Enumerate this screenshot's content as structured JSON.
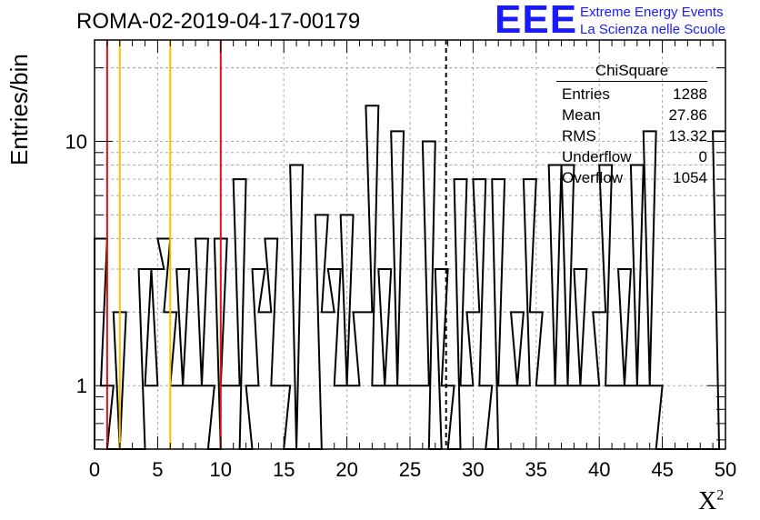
{
  "title": "ROMA-02-2019-04-17-00179",
  "logo": {
    "mark": "EEE",
    "line1": "Extreme Energy Events",
    "line2": "La Scienza nelle Scuole"
  },
  "stats": {
    "name": "ChiSquare",
    "rows": [
      {
        "label": "Entries",
        "value": "1288"
      },
      {
        "label": "Mean",
        "value": "27.86"
      },
      {
        "label": "RMS",
        "value": "13.32"
      },
      {
        "label": "Underflow",
        "value": "0"
      },
      {
        "label": "Overflow",
        "value": "1054"
      }
    ]
  },
  "colors": {
    "red": "#dd1111",
    "yellow": "#f5c400",
    "logo": "#1a1aff"
  },
  "chart_data": {
    "type": "histogram",
    "xlabel": "X",
    "xlabel_sup": "2",
    "ylabel": "Entries/bin",
    "xlim": [
      0,
      50
    ],
    "ylim": [
      0.55,
      26
    ],
    "yscale": "log",
    "grid": true,
    "bin_width": 1,
    "x_ticks": [
      "0",
      "5",
      "10",
      "15",
      "20",
      "25",
      "30",
      "35",
      "40",
      "45",
      "50"
    ],
    "y_ticks": [
      "1",
      "10"
    ],
    "bins": [
      {
        "x": 0.5,
        "v": 4
      },
      {
        "x": 1.0,
        "v": 1
      },
      {
        "x": 1.5,
        "v": 0
      },
      {
        "x": 2.0,
        "v": 2
      },
      {
        "x": 2.5,
        "v": 0
      },
      {
        "x": 3.0,
        "v": 0
      },
      {
        "x": 3.5,
        "v": 0
      },
      {
        "x": 4.0,
        "v": 3
      },
      {
        "x": 4.5,
        "v": 1
      },
      {
        "x": 5.0,
        "v": 3
      },
      {
        "x": 5.5,
        "v": 4
      },
      {
        "x": 6.0,
        "v": 2
      },
      {
        "x": 6.5,
        "v": 1
      },
      {
        "x": 7.0,
        "v": 3
      },
      {
        "x": 7.5,
        "v": 1
      },
      {
        "x": 8.0,
        "v": 1
      },
      {
        "x": 8.5,
        "v": 4
      },
      {
        "x": 9.0,
        "v": 1
      },
      {
        "x": 9.5,
        "v": 0
      },
      {
        "x": 10.0,
        "v": 4
      },
      {
        "x": 10.5,
        "v": 1
      },
      {
        "x": 11.0,
        "v": 1
      },
      {
        "x": 11.5,
        "v": 7
      },
      {
        "x": 12.0,
        "v": 0
      },
      {
        "x": 12.5,
        "v": 1
      },
      {
        "x": 13.0,
        "v": 3
      },
      {
        "x": 13.5,
        "v": 2
      },
      {
        "x": 14.0,
        "v": 4
      },
      {
        "x": 14.5,
        "v": 1
      },
      {
        "x": 15.0,
        "v": 1
      },
      {
        "x": 15.5,
        "v": 0
      },
      {
        "x": 16.0,
        "v": 8
      },
      {
        "x": 16.5,
        "v": 0
      },
      {
        "x": 17.0,
        "v": 0
      },
      {
        "x": 17.5,
        "v": 0
      },
      {
        "x": 18.0,
        "v": 5
      },
      {
        "x": 18.5,
        "v": 2
      },
      {
        "x": 19.0,
        "v": 3
      },
      {
        "x": 19.5,
        "v": 1
      },
      {
        "x": 20.0,
        "v": 5
      },
      {
        "x": 20.5,
        "v": 1
      },
      {
        "x": 21.0,
        "v": 2
      },
      {
        "x": 21.5,
        "v": 2
      },
      {
        "x": 22.0,
        "v": 14
      },
      {
        "x": 22.5,
        "v": 1
      },
      {
        "x": 23.0,
        "v": 3
      },
      {
        "x": 23.5,
        "v": 1
      },
      {
        "x": 24.0,
        "v": 11
      },
      {
        "x": 24.5,
        "v": 1
      },
      {
        "x": 25.0,
        "v": 1
      },
      {
        "x": 25.5,
        "v": 1
      },
      {
        "x": 26.0,
        "v": 1
      },
      {
        "x": 26.5,
        "v": 10
      },
      {
        "x": 27.0,
        "v": 0
      },
      {
        "x": 27.5,
        "v": 3
      },
      {
        "x": 28.0,
        "v": 1
      },
      {
        "x": 28.5,
        "v": 0
      },
      {
        "x": 29.0,
        "v": 7
      },
      {
        "x": 29.5,
        "v": 1
      },
      {
        "x": 30.0,
        "v": 2
      },
      {
        "x": 30.5,
        "v": 7
      },
      {
        "x": 31.0,
        "v": 1
      },
      {
        "x": 31.5,
        "v": 0
      },
      {
        "x": 32.0,
        "v": 7
      },
      {
        "x": 32.5,
        "v": 1
      },
      {
        "x": 33.0,
        "v": 1
      },
      {
        "x": 33.5,
        "v": 2
      },
      {
        "x": 34.0,
        "v": 1
      },
      {
        "x": 34.5,
        "v": 7
      },
      {
        "x": 35.0,
        "v": 2
      },
      {
        "x": 35.5,
        "v": 1
      },
      {
        "x": 36.0,
        "v": 1
      },
      {
        "x": 36.5,
        "v": 8
      },
      {
        "x": 37.0,
        "v": 1
      },
      {
        "x": 37.5,
        "v": 8
      },
      {
        "x": 38.0,
        "v": 1
      },
      {
        "x": 38.5,
        "v": 3
      },
      {
        "x": 39.0,
        "v": 1
      },
      {
        "x": 39.5,
        "v": 1
      },
      {
        "x": 40.0,
        "v": 2
      },
      {
        "x": 40.5,
        "v": 8
      },
      {
        "x": 41.0,
        "v": 1
      },
      {
        "x": 41.5,
        "v": 1
      },
      {
        "x": 42.0,
        "v": 3
      },
      {
        "x": 42.5,
        "v": 1
      },
      {
        "x": 43.0,
        "v": 8
      },
      {
        "x": 43.5,
        "v": 1
      },
      {
        "x": 44.0,
        "v": 11
      },
      {
        "x": 44.5,
        "v": 1
      },
      {
        "x": 45.0,
        "v": 0
      },
      {
        "x": 45.5,
        "v": 0
      },
      {
        "x": 46.0,
        "v": 0
      },
      {
        "x": 46.5,
        "v": 0
      },
      {
        "x": 47.0,
        "v": 0
      },
      {
        "x": 47.5,
        "v": 0
      },
      {
        "x": 48.0,
        "v": 0
      },
      {
        "x": 48.5,
        "v": 0
      },
      {
        "x": 49.0,
        "v": 0
      },
      {
        "x": 49.5,
        "v": 11
      }
    ],
    "reference_lines": [
      {
        "x": 1.0,
        "color": "red",
        "style": "solid"
      },
      {
        "x": 2.0,
        "color": "yellow",
        "style": "solid"
      },
      {
        "x": 6.0,
        "color": "yellow",
        "style": "solid"
      },
      {
        "x": 10.0,
        "color": "red",
        "style": "solid"
      },
      {
        "x": 27.86,
        "color": "black",
        "style": "dashed"
      }
    ]
  }
}
